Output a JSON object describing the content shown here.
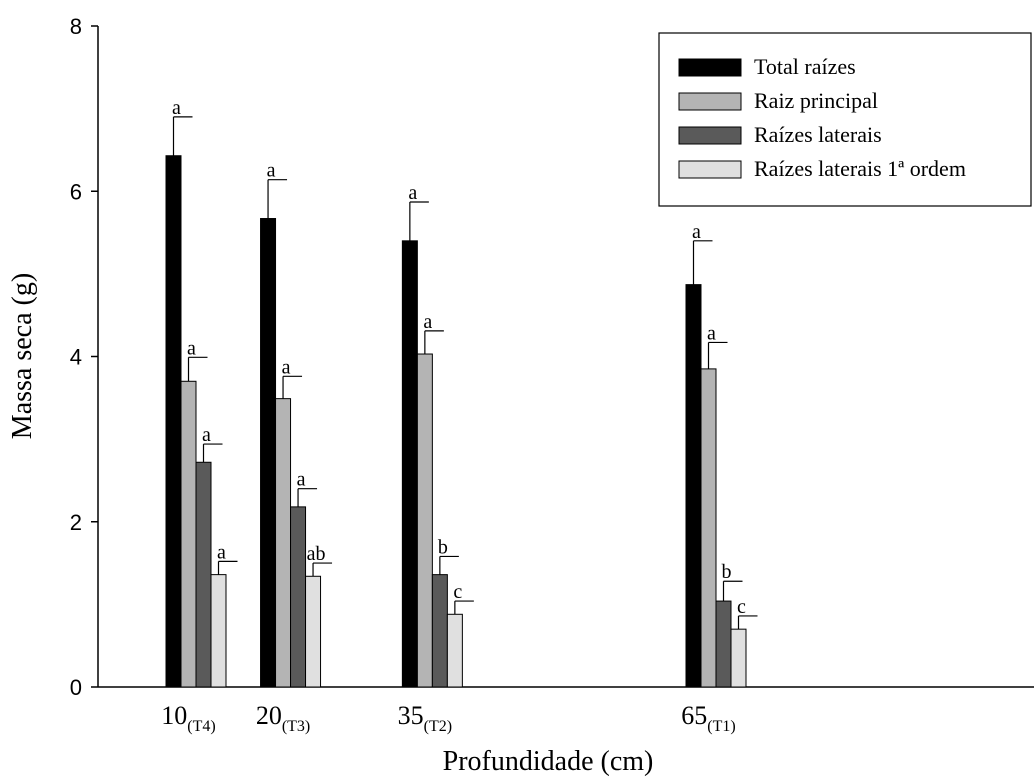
{
  "chart_data": {
    "type": "bar",
    "xlabel": "Profundidade (cm)",
    "ylabel": "Massa seca (g)",
    "ylim": [
      0,
      8
    ],
    "yticks": [
      0,
      2,
      4,
      6,
      8
    ],
    "x_axis_type": "numeric depth (cm)",
    "xlim": [
      0,
      115
    ],
    "grid": false,
    "legend_position": "top-right",
    "categories": [
      {
        "depth": 10,
        "main": "10",
        "sub": "(T4)"
      },
      {
        "depth": 20,
        "main": "20",
        "sub": "(T3)"
      },
      {
        "depth": 35,
        "main": "35",
        "sub": "(T2)"
      },
      {
        "depth": 65,
        "main": "65",
        "sub": "(T1)"
      }
    ],
    "series": [
      {
        "name": "Total raízes",
        "color": "#000000",
        "values": [
          6.43,
          5.67,
          5.4,
          4.87
        ],
        "errors": [
          0.47,
          0.47,
          0.47,
          0.53
        ],
        "letters": [
          "a",
          "a",
          "a",
          "a"
        ]
      },
      {
        "name": "Raiz principal",
        "color": "#b4b4b4",
        "values": [
          3.7,
          3.49,
          4.03,
          3.85
        ],
        "errors": [
          0.29,
          0.27,
          0.28,
          0.32
        ],
        "letters": [
          "a",
          "a",
          "a",
          "a"
        ]
      },
      {
        "name": "Raízes laterais",
        "color": "#5a5a5a",
        "values": [
          2.72,
          2.18,
          1.36,
          1.04
        ],
        "errors": [
          0.22,
          0.22,
          0.22,
          0.24
        ],
        "letters": [
          "a",
          "a",
          "b",
          "b"
        ]
      },
      {
        "name": "Raízes laterais 1ª ordem",
        "color": "#e0e0e0",
        "values": [
          1.36,
          1.34,
          0.88,
          0.7
        ],
        "errors": [
          0.16,
          0.16,
          0.16,
          0.16
        ],
        "letters": [
          "a",
          "ab",
          "c",
          "c"
        ]
      }
    ]
  }
}
